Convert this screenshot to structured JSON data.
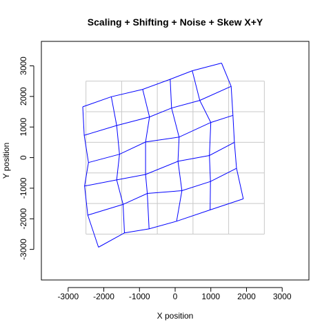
{
  "chart_data": {
    "type": "line",
    "title": "Scaling + Shifting + Noise + Skew X+Y",
    "xlabel": "X position",
    "ylabel": "Y position",
    "xlim": [
      -3750,
      3750
    ],
    "ylim": [
      -4000,
      3800
    ],
    "xticks": [
      -3000,
      -2000,
      -1000,
      0,
      1000,
      2000,
      3000
    ],
    "yticks": [
      -3000,
      -2000,
      -1000,
      0,
      1000,
      2000,
      3000
    ],
    "xtick_labels": [
      "-3000",
      "-2000",
      "-1000",
      "0",
      "1000",
      "2000",
      "3000"
    ],
    "ytick_labels": [
      "-3000",
      "-2000",
      "-1000",
      "0",
      "1000",
      "2000",
      "3000"
    ],
    "reference_grid": {
      "color": "#c8c8c8",
      "x": [
        -2500,
        -1500,
        -500,
        500,
        1500,
        2500
      ],
      "y": [
        -2500,
        -1500,
        -500,
        500,
        1500,
        2500
      ]
    },
    "warped_grid": {
      "color": "#0000ff",
      "rows": [
        [
          [
            -2150,
            -2930
          ],
          [
            -1420,
            -2460
          ],
          [
            -730,
            -2330
          ],
          [
            40,
            -2080
          ],
          [
            980,
            -1710
          ],
          [
            1910,
            -1350
          ]
        ],
        [
          [
            -2450,
            -1880
          ],
          [
            -1460,
            -1530
          ],
          [
            -780,
            -1170
          ],
          [
            190,
            -1080
          ],
          [
            990,
            -780
          ],
          [
            1720,
            -350
          ]
        ],
        [
          [
            -2540,
            -930
          ],
          [
            -1640,
            -730
          ],
          [
            -830,
            -550
          ],
          [
            80,
            -120
          ],
          [
            960,
            70
          ],
          [
            1660,
            500
          ]
        ],
        [
          [
            -2430,
            -160
          ],
          [
            -1560,
            110
          ],
          [
            -830,
            510
          ],
          [
            110,
            670
          ],
          [
            1000,
            1150
          ],
          [
            1620,
            1380
          ]
        ],
        [
          [
            -2550,
            730
          ],
          [
            -1640,
            1050
          ],
          [
            -720,
            1330
          ],
          [
            -100,
            1620
          ],
          [
            690,
            1870
          ],
          [
            1570,
            2330
          ]
        ],
        [
          [
            -2590,
            1660
          ],
          [
            -1790,
            1990
          ],
          [
            -910,
            2230
          ],
          [
            -140,
            2560
          ],
          [
            480,
            2840
          ],
          [
            1300,
            3090
          ]
        ]
      ]
    }
  }
}
